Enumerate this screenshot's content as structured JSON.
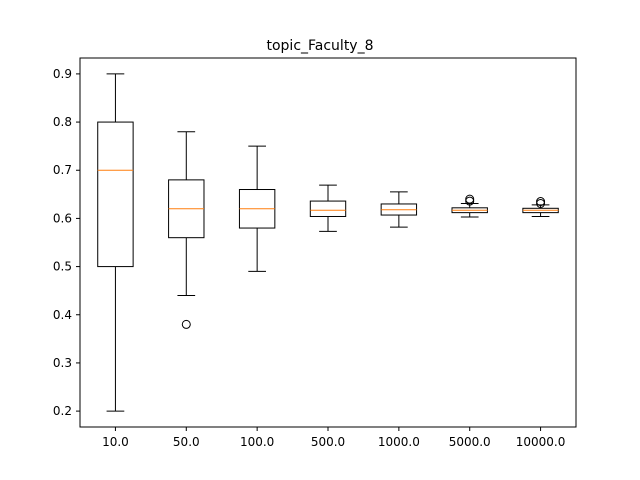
{
  "chart_data": {
    "type": "box",
    "title": "topic_Faculty_8",
    "xlabel": "",
    "ylabel": "",
    "ylim": [
      0.167,
      0.933
    ],
    "yticks": [
      "0.2",
      "0.3",
      "0.4",
      "0.5",
      "0.6",
      "0.7",
      "0.8",
      "0.9"
    ],
    "categories": [
      "10.0",
      "50.0",
      "100.0",
      "500.0",
      "1000.0",
      "5000.0",
      "10000.0"
    ],
    "boxes": [
      {
        "whisker_low": 0.2,
        "q1": 0.5,
        "median": 0.7,
        "q3": 0.8,
        "whisker_high": 0.9,
        "outliers": []
      },
      {
        "whisker_low": 0.44,
        "q1": 0.56,
        "median": 0.62,
        "q3": 0.68,
        "whisker_high": 0.78,
        "outliers": [
          0.38
        ]
      },
      {
        "whisker_low": 0.49,
        "q1": 0.58,
        "median": 0.62,
        "q3": 0.66,
        "whisker_high": 0.75,
        "outliers": []
      },
      {
        "whisker_low": 0.573,
        "q1": 0.604,
        "median": 0.617,
        "q3": 0.636,
        "whisker_high": 0.669,
        "outliers": []
      },
      {
        "whisker_low": 0.582,
        "q1": 0.607,
        "median": 0.618,
        "q3": 0.63,
        "whisker_high": 0.655,
        "outliers": []
      },
      {
        "whisker_low": 0.603,
        "q1": 0.612,
        "median": 0.617,
        "q3": 0.622,
        "whisker_high": 0.631,
        "outliers": [
          0.636,
          0.64
        ]
      },
      {
        "whisker_low": 0.604,
        "q1": 0.612,
        "median": 0.617,
        "q3": 0.621,
        "whisker_high": 0.628,
        "outliers": [
          0.631,
          0.635
        ]
      }
    ],
    "colors": {
      "box": "#000000",
      "median": "#ff7f0e",
      "outlier": "#000000"
    },
    "grid": false,
    "legend": "none"
  }
}
